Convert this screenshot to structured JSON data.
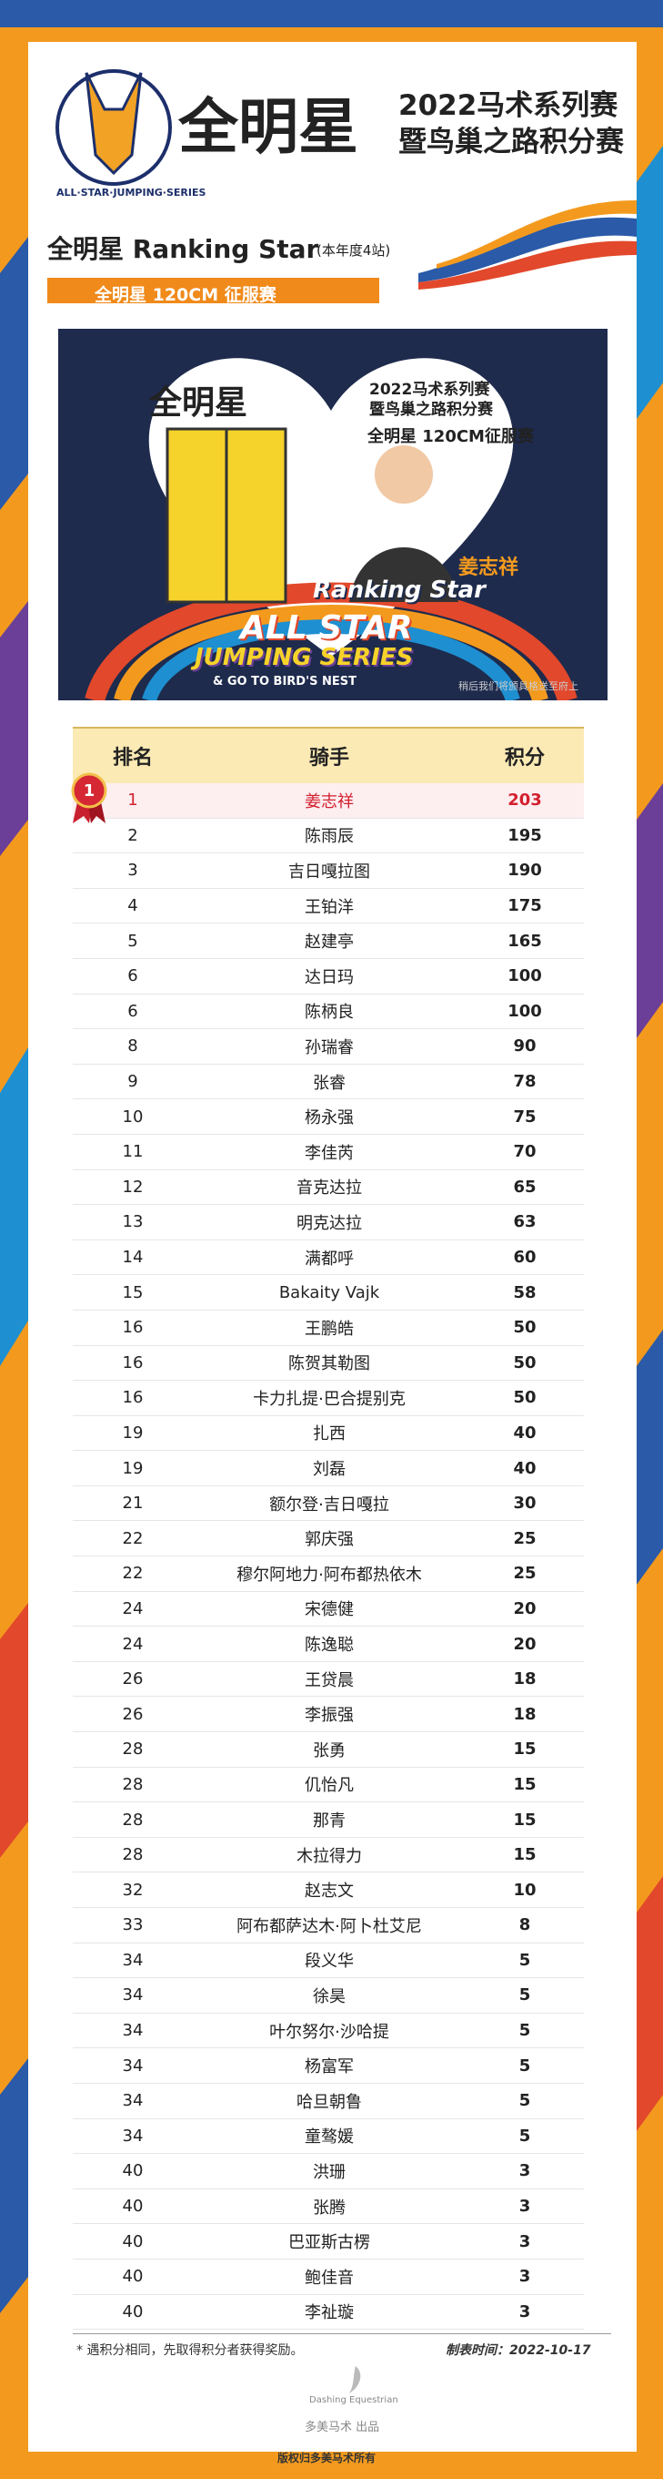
{
  "header": {
    "logo": "ALL·STAR·JUMPING·SERIES",
    "brand": "全明星",
    "line1": "2022马术系列赛",
    "line2": "暨鸟巢之路积分赛"
  },
  "section": {
    "title": "全明星 Ranking Star",
    "note": "(本年度4站)",
    "event": "全明星 120CM 征服赛"
  },
  "banner": {
    "brand": "全明星",
    "line1": "2022马术系列赛",
    "line2": "暨鸟巢之路积分赛",
    "event": "全明星 120CM征服赛",
    "rider": "姜志祥",
    "ranking": "Ranking Star",
    "allstar": "ALL STAR",
    "jumping": "JUMPING SERIES",
    "nest": "& GO TO BIRD'S NEST",
    "caption": "稍后我们将颁具格送至府上"
  },
  "table": {
    "columns": [
      "排名",
      "骑手",
      "积分"
    ],
    "rows": [
      [
        1,
        "姜志祥",
        203
      ],
      [
        2,
        "陈雨辰",
        195
      ],
      [
        3,
        "吉日嘎拉图",
        190
      ],
      [
        4,
        "王铂洋",
        175
      ],
      [
        5,
        "赵建亭",
        165
      ],
      [
        6,
        "达日玛",
        100
      ],
      [
        6,
        "陈柄良",
        100
      ],
      [
        8,
        "孙瑞睿",
        90
      ],
      [
        9,
        "张睿",
        78
      ],
      [
        10,
        "杨永强",
        75
      ],
      [
        11,
        "李佳芮",
        70
      ],
      [
        12,
        "音克达拉",
        65
      ],
      [
        13,
        "明克达拉",
        63
      ],
      [
        14,
        "满都呼",
        60
      ],
      [
        15,
        "Bakaity Vajk",
        58
      ],
      [
        16,
        "王鹏皓",
        50
      ],
      [
        16,
        "陈贺其勒图",
        50
      ],
      [
        16,
        "卡力扎提·巴合提别克",
        50
      ],
      [
        19,
        "扎西",
        40
      ],
      [
        19,
        "刘磊",
        40
      ],
      [
        21,
        "额尔登·吉日嘎拉",
        30
      ],
      [
        22,
        "郭庆强",
        25
      ],
      [
        22,
        "穆尔阿地力·阿布都热依木",
        25
      ],
      [
        24,
        "宋德健",
        20
      ],
      [
        24,
        "陈逸聪",
        20
      ],
      [
        26,
        "王贷晨",
        18
      ],
      [
        26,
        "李振强",
        18
      ],
      [
        28,
        "张勇",
        15
      ],
      [
        28,
        "仉怡凡",
        15
      ],
      [
        28,
        "那青",
        15
      ],
      [
        28,
        "木拉得力",
        15
      ],
      [
        32,
        "赵志文",
        10
      ],
      [
        33,
        "阿布都萨达木·阿卜杜艾尼",
        8
      ],
      [
        34,
        "段义华",
        5
      ],
      [
        34,
        "徐昊",
        5
      ],
      [
        34,
        "叶尔努尔·沙哈提",
        5
      ],
      [
        34,
        "杨富军",
        5
      ],
      [
        34,
        "哈旦朝鲁",
        5
      ],
      [
        34,
        "童骜媛",
        5
      ],
      [
        40,
        "洪珊",
        3
      ],
      [
        40,
        "张腾",
        3
      ],
      [
        40,
        "巴亚斯古楞",
        3
      ],
      [
        40,
        "鲍佳音",
        3
      ],
      [
        40,
        "李祉璇",
        3
      ]
    ]
  },
  "footer": {
    "note": "* 遇积分相同，先取得积分者获得奖励。",
    "date": "制表时间：2022-10-17",
    "logo": "Dashing Equestrian",
    "producer": "多美马术 出品",
    "copyright": "版权归多美马术所有"
  }
}
